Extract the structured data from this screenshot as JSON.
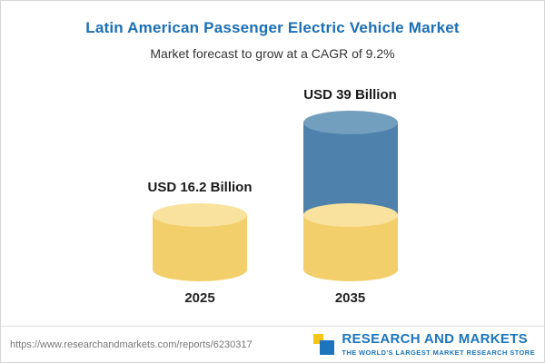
{
  "header": {
    "title": "Latin American Passenger Electric Vehicle Market",
    "subtitle": "Market forecast to grow at a CAGR of 9.2%"
  },
  "chart_data": {
    "type": "bar",
    "bar_style": "cylinder",
    "categories": [
      "2025",
      "2035"
    ],
    "values": [
      16.2,
      39
    ],
    "value_labels": [
      "USD 16.2 Billion",
      "USD 39 Billion"
    ],
    "unit": "USD Billion",
    "title": "Latin American Passenger Electric Vehicle Market",
    "subtitle": "Market forecast to grow at a CAGR of 9.2%",
    "cagr": "9.2%",
    "series": [
      {
        "name": "2025 base",
        "values": [
          16.2,
          16.2
        ],
        "color": "#f2cf6b"
      },
      {
        "name": "growth to 2035",
        "values": [
          0,
          22.8
        ],
        "color": "#4e81ab"
      }
    ],
    "grid": false,
    "legend": false,
    "axes_visible": false
  },
  "footer": {
    "source_url": "https://www.researchandmarkets.com/reports/6230317",
    "brand": "RESEARCH AND MARKETS",
    "tagline": "THE WORLD'S LARGEST MARKET RESEARCH STORE",
    "brand_color": "#1c75bc"
  },
  "colors": {
    "title_blue": "#1b6fb5",
    "bar_yellow": "#f2cf6b",
    "bar_yellow_cap": "#f8e29d",
    "bar_blue": "#4e81ab",
    "bar_blue_cap": "#739fbf"
  }
}
